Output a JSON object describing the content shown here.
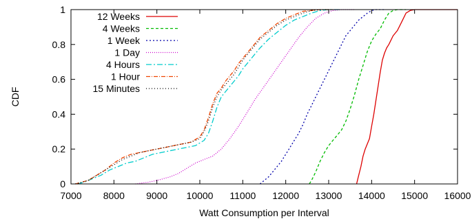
{
  "chart_data": {
    "type": "line",
    "title": "",
    "xlabel": "Watt Consumption per Interval",
    "ylabel": "CDF",
    "xlim": [
      7000,
      16000
    ],
    "ylim": [
      0,
      1
    ],
    "xticks": [
      7000,
      8000,
      9000,
      10000,
      11000,
      12000,
      13000,
      14000,
      15000,
      16000
    ],
    "yticks": [
      0,
      0.2,
      0.4,
      0.6,
      0.8,
      1
    ],
    "xtick_labels": [
      "7000",
      "8000",
      "9000",
      "10000",
      "11000",
      "12000",
      "13000",
      "14000",
      "15000",
      "16000"
    ],
    "ytick_labels": [
      "0",
      "0.2",
      "0.4",
      "0.6",
      "0.8",
      "1"
    ],
    "grid": false,
    "legend_position": "top-left",
    "series": [
      {
        "name": "12 Weeks",
        "color": "#dd0000",
        "dash": "solid",
        "x": [
          13650,
          13700,
          13750,
          13800,
          13850,
          13900,
          13950,
          14000,
          14050,
          14100,
          14150,
          14200,
          14250,
          14300,
          14350,
          14400,
          14500,
          14600,
          14700,
          14800,
          14900,
          15000,
          15200,
          15500,
          16000
        ],
        "y": [
          0,
          0.05,
          0.1,
          0.16,
          0.2,
          0.23,
          0.26,
          0.33,
          0.4,
          0.48,
          0.56,
          0.64,
          0.71,
          0.75,
          0.78,
          0.8,
          0.85,
          0.88,
          0.93,
          0.98,
          0.995,
          1,
          1,
          1,
          1
        ]
      },
      {
        "name": "4 Weeks",
        "color": "#00bb00",
        "dash": "4,3",
        "x": [
          12550,
          12600,
          12700,
          12800,
          12900,
          13000,
          13100,
          13200,
          13300,
          13400,
          13500,
          13600,
          13700,
          13800,
          13900,
          14000,
          14100,
          14200,
          14300,
          14400,
          14500,
          14600,
          14800
        ],
        "y": [
          0,
          0.02,
          0.07,
          0.13,
          0.18,
          0.22,
          0.25,
          0.28,
          0.31,
          0.36,
          0.43,
          0.51,
          0.6,
          0.68,
          0.76,
          0.82,
          0.86,
          0.89,
          0.94,
          0.98,
          0.995,
          1,
          1
        ]
      },
      {
        "name": "1 Week",
        "color": "#0000aa",
        "dash": "2,3",
        "x": [
          11400,
          11500,
          11600,
          11700,
          11800,
          11900,
          12000,
          12100,
          12200,
          12300,
          12400,
          12500,
          12600,
          12700,
          12800,
          12900,
          13000,
          13100,
          13200,
          13300,
          13400,
          13500,
          13600,
          13700,
          13800,
          13900,
          14000,
          14100,
          14300
        ],
        "y": [
          0,
          0.02,
          0.04,
          0.07,
          0.1,
          0.13,
          0.17,
          0.21,
          0.25,
          0.29,
          0.34,
          0.4,
          0.45,
          0.5,
          0.55,
          0.6,
          0.65,
          0.7,
          0.75,
          0.8,
          0.85,
          0.88,
          0.91,
          0.94,
          0.96,
          0.98,
          0.995,
          1,
          1
        ]
      },
      {
        "name": "1 Day",
        "color": "#cc00cc",
        "dash": "1,2",
        "x": [
          8500,
          8800,
          9000,
          9300,
          9500,
          9700,
          9900,
          10100,
          10300,
          10500,
          10700,
          10900,
          11100,
          11300,
          11500,
          11700,
          11900,
          12100,
          12300,
          12500,
          12700,
          12900,
          13100,
          13300,
          13600
        ],
        "y": [
          0,
          0.01,
          0.02,
          0.04,
          0.06,
          0.09,
          0.12,
          0.14,
          0.16,
          0.2,
          0.26,
          0.33,
          0.41,
          0.49,
          0.56,
          0.63,
          0.7,
          0.77,
          0.84,
          0.9,
          0.95,
          0.98,
          0.995,
          1,
          1
        ]
      },
      {
        "name": "4 Hours",
        "color": "#00cccc",
        "dash": "8,3,2,3",
        "x": [
          7150,
          7300,
          7500,
          7700,
          7900,
          8100,
          8300,
          8500,
          8700,
          8900,
          9100,
          9300,
          9500,
          9700,
          9900,
          10100,
          10200,
          10300,
          10400,
          10500,
          10600,
          10700,
          10800,
          10900,
          11000,
          11200,
          11400,
          11600,
          11800,
          12000,
          12200,
          12400,
          12600,
          12800,
          13000,
          13300
        ],
        "y": [
          0,
          0.01,
          0.03,
          0.05,
          0.08,
          0.1,
          0.12,
          0.13,
          0.15,
          0.17,
          0.18,
          0.19,
          0.2,
          0.21,
          0.22,
          0.25,
          0.29,
          0.36,
          0.44,
          0.5,
          0.53,
          0.56,
          0.59,
          0.62,
          0.66,
          0.72,
          0.78,
          0.83,
          0.87,
          0.91,
          0.94,
          0.96,
          0.98,
          0.995,
          1,
          1
        ]
      },
      {
        "name": "1 Hour",
        "color": "#ee4400",
        "dash": "6,2,1,2",
        "x": [
          7100,
          7250,
          7400,
          7600,
          7800,
          8000,
          8200,
          8400,
          8600,
          8800,
          9000,
          9200,
          9400,
          9600,
          9800,
          10000,
          10100,
          10200,
          10300,
          10400,
          10500,
          10600,
          10700,
          10800,
          10900,
          11000,
          11200,
          11400,
          11600,
          11800,
          12000,
          12200,
          12400,
          12600,
          12800,
          13100
        ],
        "y": [
          0,
          0.01,
          0.02,
          0.05,
          0.08,
          0.12,
          0.15,
          0.17,
          0.18,
          0.19,
          0.2,
          0.21,
          0.22,
          0.23,
          0.24,
          0.27,
          0.31,
          0.38,
          0.46,
          0.52,
          0.55,
          0.59,
          0.62,
          0.65,
          0.69,
          0.72,
          0.78,
          0.84,
          0.88,
          0.92,
          0.95,
          0.97,
          0.99,
          0.995,
          1,
          1
        ]
      },
      {
        "name": "15 Minutes",
        "color": "#000000",
        "dash": "1,3",
        "x": [
          7100,
          7250,
          7400,
          7600,
          7800,
          8000,
          8200,
          8400,
          8600,
          8800,
          9000,
          9200,
          9400,
          9600,
          9800,
          10000,
          10100,
          10200,
          10300,
          10400,
          10500,
          10600,
          10700,
          10800,
          10900,
          11000,
          11200,
          11400,
          11600,
          11800,
          12000,
          12200,
          12400,
          12600,
          12800,
          13100
        ],
        "y": [
          0,
          0.01,
          0.02,
          0.05,
          0.08,
          0.11,
          0.14,
          0.16,
          0.18,
          0.19,
          0.2,
          0.21,
          0.22,
          0.23,
          0.24,
          0.26,
          0.3,
          0.36,
          0.44,
          0.5,
          0.54,
          0.57,
          0.6,
          0.63,
          0.67,
          0.71,
          0.77,
          0.83,
          0.87,
          0.91,
          0.94,
          0.96,
          0.98,
          0.995,
          1,
          1
        ]
      }
    ]
  }
}
